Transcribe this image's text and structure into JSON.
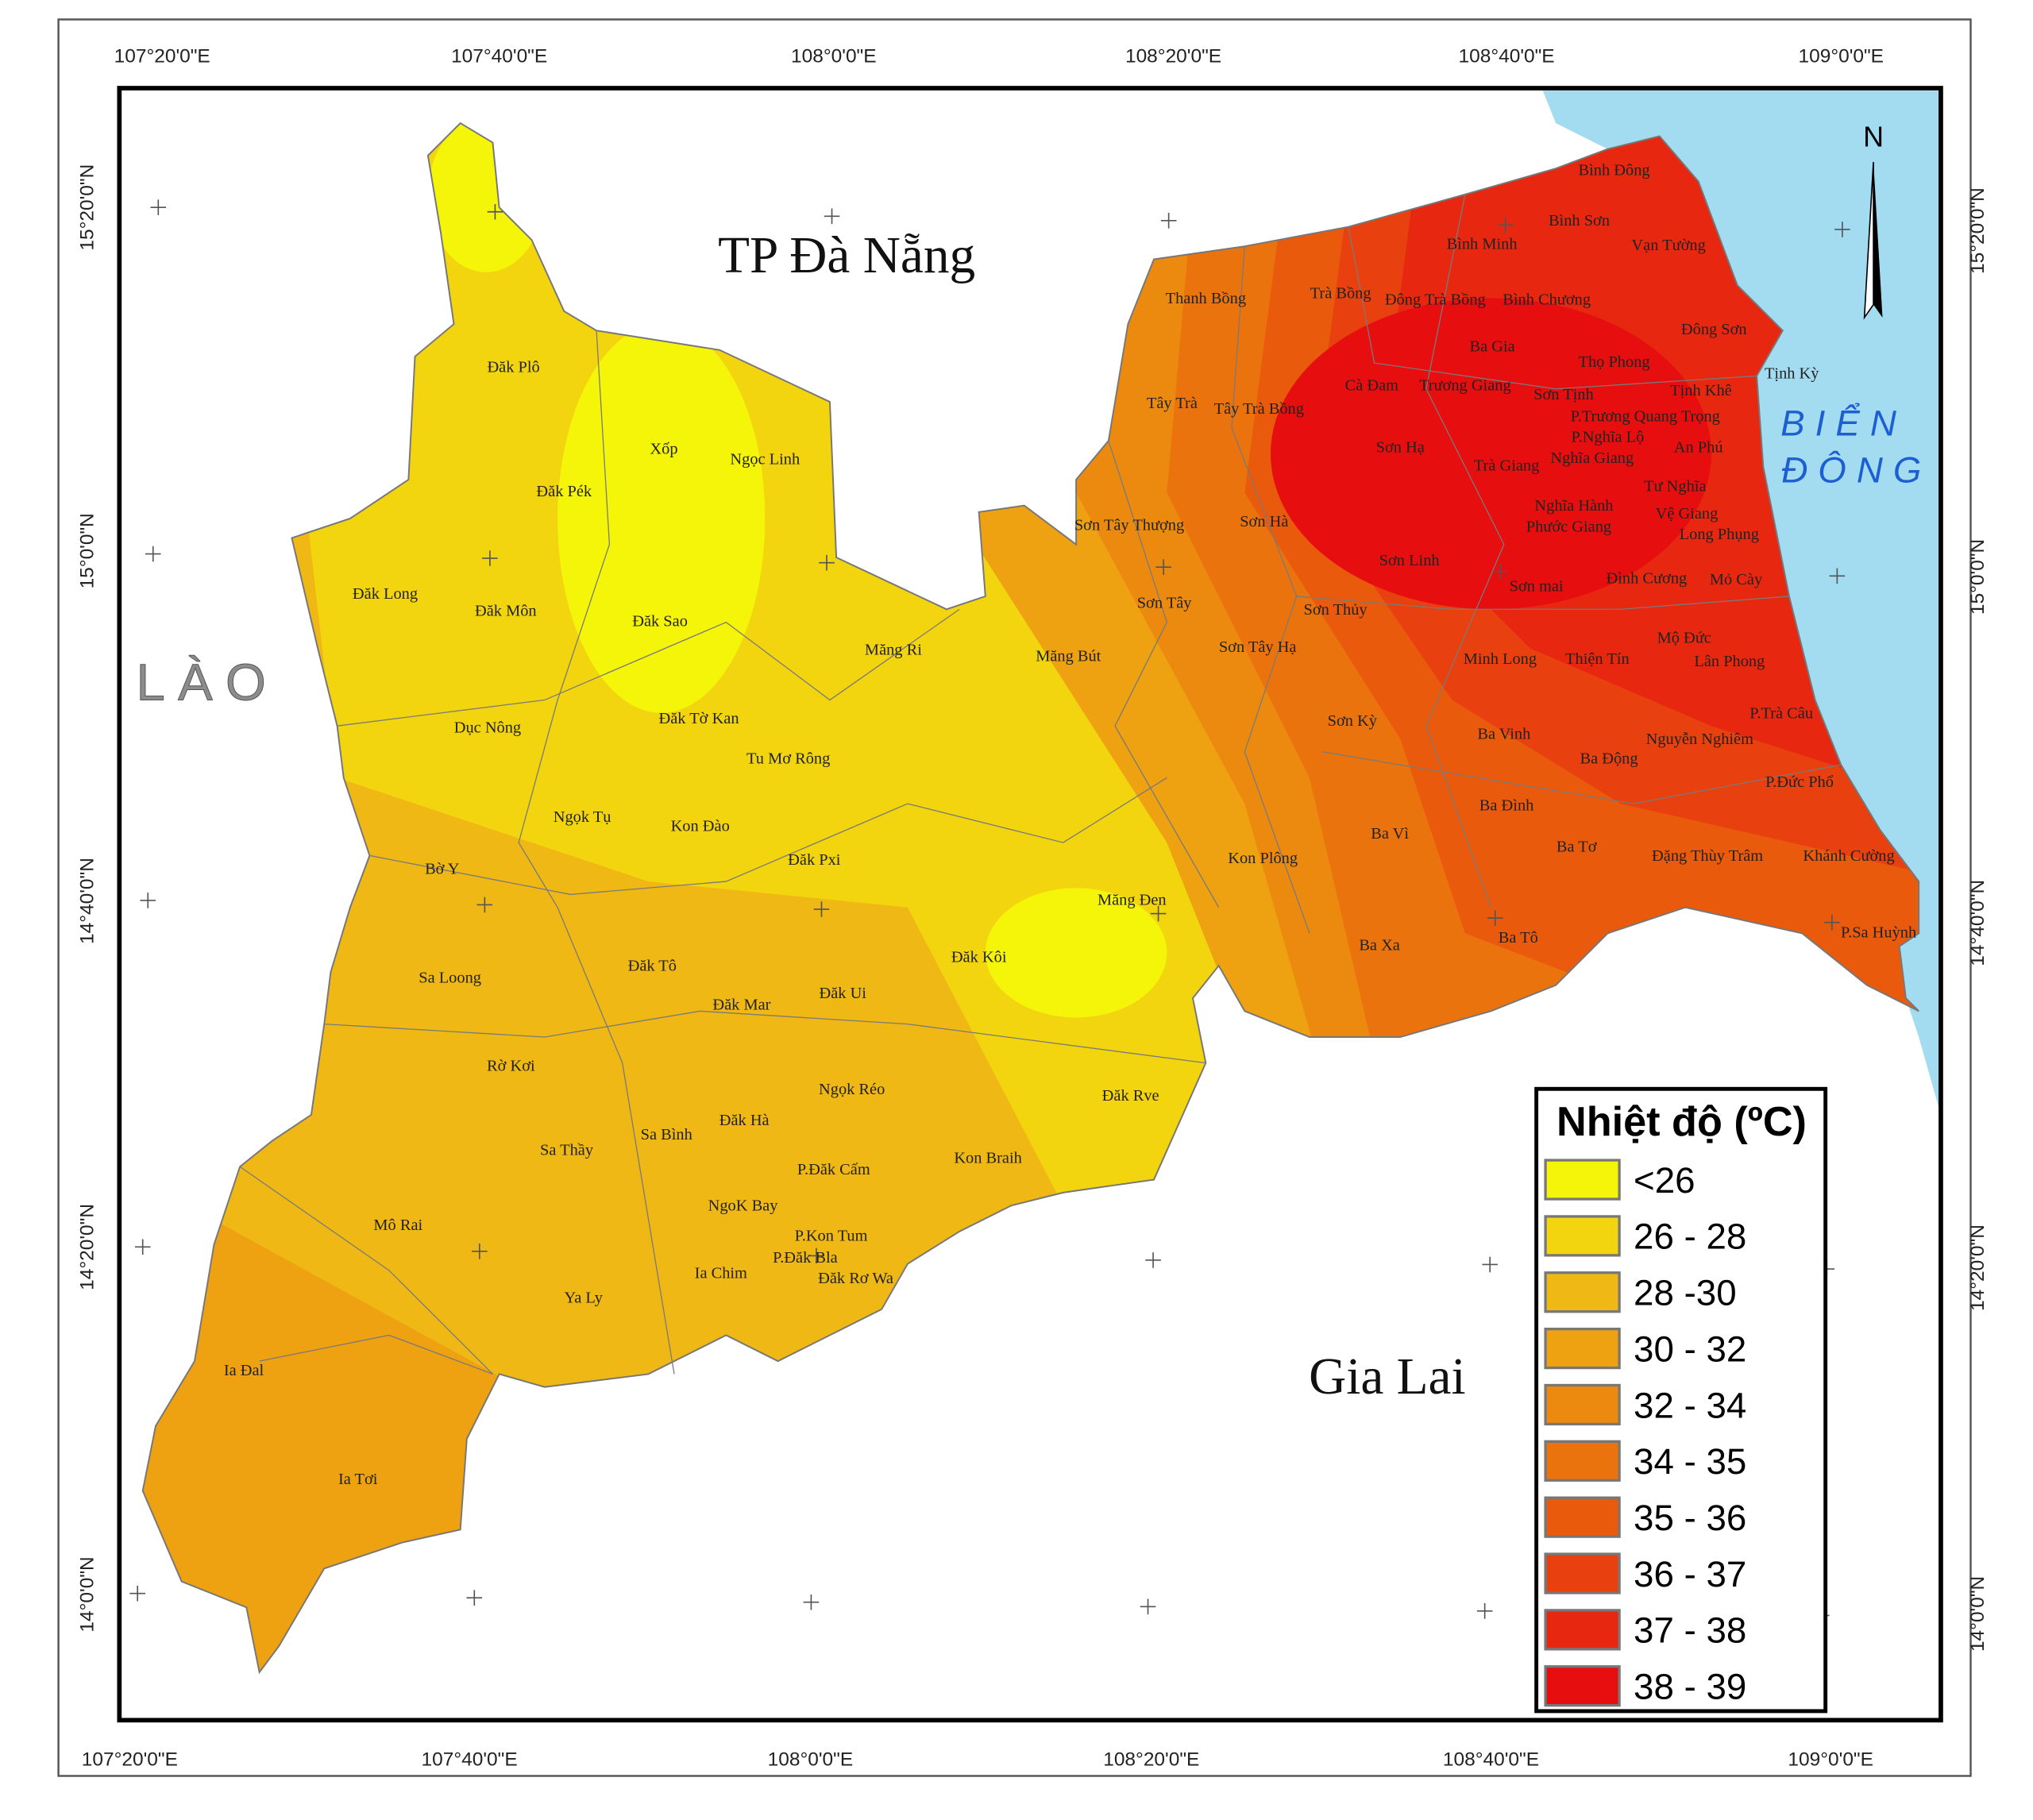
{
  "map": {
    "longitude_labels": [
      "107°20'0\"E",
      "107°40'0\"E",
      "108°0'0\"E",
      "108°20'0\"E",
      "108°40'0\"E",
      "109°0'0\"E"
    ],
    "latitude_labels": [
      "15°20'0\"N",
      "15°0'0\"N",
      "14°40'0\"N",
      "14°20'0\"N",
      "14°0'0\"N"
    ],
    "regions": {
      "da_nang": "TP Đà Nẵng",
      "laos": "LÀO",
      "gia_lai": "Gia Lai",
      "sea": [
        "BIỂN",
        "ĐÔNG"
      ]
    },
    "north": "N",
    "legend": {
      "title": "Nhiệt độ (ºC)",
      "items": [
        {
          "label": "<26",
          "color": "#f5f50a"
        },
        {
          "label": "26 - 28",
          "color": "#f2d40f"
        },
        {
          "label": "28 -30",
          "color": "#f0b814"
        },
        {
          "label": "30 - 32",
          "color": "#eea111"
        },
        {
          "label": "32 - 34",
          "color": "#ec8a0f"
        },
        {
          "label": "34 - 35",
          "color": "#eb730d"
        },
        {
          "label": "35 - 36",
          "color": "#ea5a0d"
        },
        {
          "label": "36 - 37",
          "color": "#e8400e"
        },
        {
          "label": "37 - 38",
          "color": "#e7270f"
        },
        {
          "label": "38 - 39",
          "color": "#e60e0e"
        }
      ]
    },
    "communes": [
      "Bình Đông",
      "Bình Sơn",
      "Bình Minh",
      "Vạn Tường",
      "Thanh Bồng",
      "Trà Bồng",
      "Đông Trà Bồng",
      "Bình Chương",
      "Đông Sơn",
      "Ba Gia",
      "Thọ Phong",
      "Tịnh Kỳ",
      "Cà Đam",
      "Trương Giang",
      "Sơn Tịnh",
      "Tịnh Khê",
      "Tây Trà",
      "Tây Trà Bồng",
      "P.Trương Quang Trọng",
      "P.Nghĩa Lộ",
      "Sơn Hạ",
      "An Phú",
      "Nghĩa Giang",
      "Trà Giang",
      "Tư Nghĩa",
      "Nghĩa Hành",
      "Vệ Giang",
      "Phước Giang",
      "Long Phụng",
      "Sơn Tây Thượng",
      "Sơn Hà",
      "Sơn Linh",
      "Đình Cương",
      "Mỏ Cày",
      "Sơn mai",
      "Sơn Tây",
      "Sơn Thủy",
      "Mộ Đức",
      "Măng Bút",
      "Sơn Tây Hạ",
      "Minh Long",
      "Thiện Tín",
      "Lân Phong",
      "P.Trà Câu",
      "Sơn Kỳ",
      "Ba Vinh",
      "Nguyễn Nghiêm",
      "Ba Động",
      "P.Đức Phổ",
      "Ba Đình",
      "Ba Vì",
      "Ba Tơ",
      "Đặng Thùy Trâm",
      "Khánh Cường",
      "Kon Plông",
      "P.Sa Huỳnh",
      "Ba Xa",
      "Ba Tô",
      "Đăk Plô",
      "Xốp",
      "Ngọc Linh",
      "Đăk Pék",
      "Đăk Long",
      "Đăk Môn",
      "Đăk Sao",
      "Măng Ri",
      "Dục Nông",
      "Đăk Tờ Kan",
      "Tu Mơ Rông",
      "Ngọk Tụ",
      "Kon Đào",
      "Đăk Pxi",
      "Bờ Y",
      "Măng Đen",
      "Đăk Kôi",
      "Đăk Tô",
      "Sa Loong",
      "Đăk Mar",
      "Đăk Ui",
      "Rờ Kơi",
      "Ngọk Réo",
      "Đăk Rve",
      "Đăk Hà",
      "Sa Bình",
      "Sa Thầy",
      "Kon Braih",
      "P.Đăk Cấm",
      "NgoK Bay",
      "Mô Rai",
      "P.Kon Tum",
      "P.Đăk Bla",
      "Ia Chim",
      "Đăk Rơ Wa",
      "Ya Ly",
      "Ia Đal",
      "Ia Tơi"
    ]
  }
}
